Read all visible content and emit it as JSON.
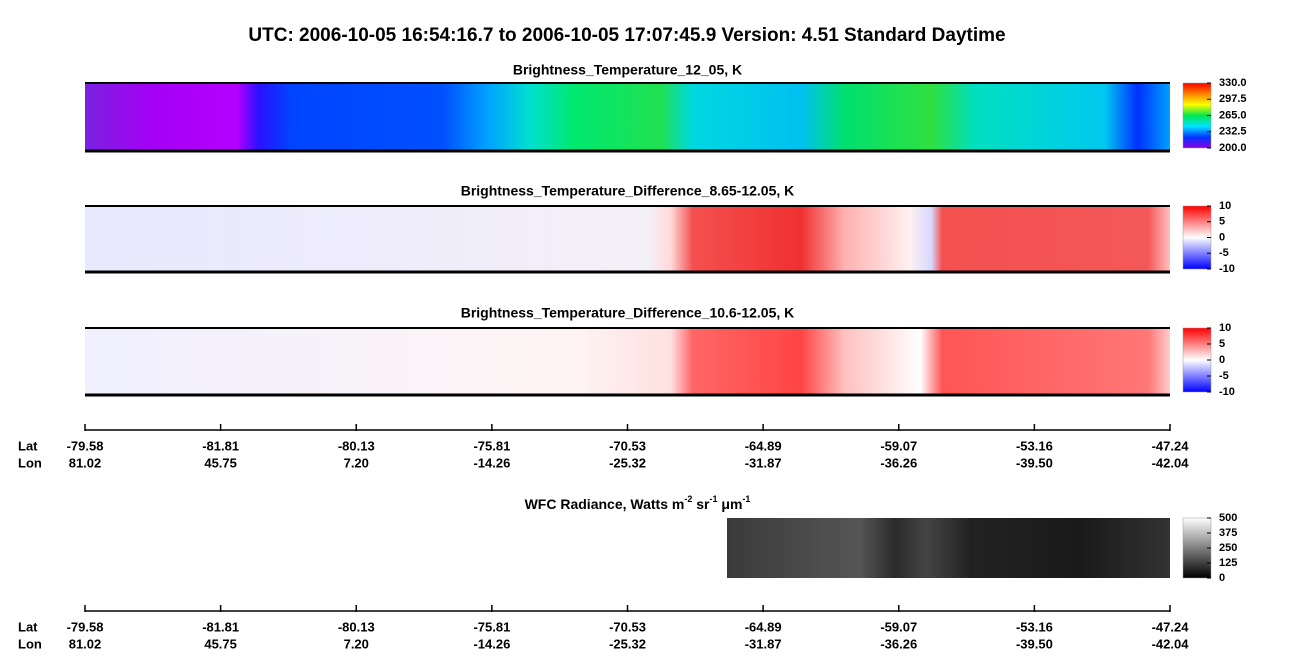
{
  "title": "UTC:  2006-10-05   16:54:16.7  to  2006-10-05   17:07:45.9    Version: 4.51  Standard Daytime",
  "chart_data": [
    {
      "type": "heatmap",
      "title": "Brightness_Temperature_12_05, K",
      "colormap": [
        "#8a00e6",
        "#0033ff",
        "#00e5ff",
        "#00e64d",
        "#ffff00",
        "#ff8000",
        "#ff0000"
      ],
      "zlim": [
        200,
        330
      ],
      "zticks": [
        {
          "value": 200,
          "label": "200.0"
        },
        {
          "value": 232.5,
          "label": "232.5"
        },
        {
          "value": 265,
          "label": "265.0"
        },
        {
          "value": 297.5,
          "label": "297.5"
        },
        {
          "value": 330,
          "label": "330.0"
        }
      ]
    },
    {
      "type": "heatmap",
      "title": "Brightness_Temperature_Difference_8.65-12.05, K",
      "colormap": [
        "#0000ff",
        "#ffffff",
        "#ff0000"
      ],
      "zlim": [
        -10,
        10
      ],
      "zticks": [
        -10,
        -5,
        0,
        5,
        10
      ]
    },
    {
      "type": "heatmap",
      "title": "Brightness_Temperature_Difference_10.6-12.05, K",
      "colormap": [
        "#0000ff",
        "#ffffff",
        "#ff0000"
      ],
      "zlim": [
        -10,
        10
      ],
      "zticks": [
        -10,
        -5,
        0,
        5,
        10
      ]
    },
    {
      "type": "track-axis",
      "row_labels": [
        "Lat",
        "Lon"
      ],
      "lat": [
        "-79.58",
        "-81.81",
        "-80.13",
        "-75.81",
        "-70.53",
        "-64.89",
        "-59.07",
        "-53.16",
        "-47.24"
      ],
      "lon": [
        "81.02",
        "45.75",
        "7.20",
        "-14.26",
        "-25.32",
        "-31.87",
        "-36.26",
        "-39.50",
        "-42.04"
      ]
    },
    {
      "type": "heatmap",
      "title": [
        "WFC Radiance, Watts m",
        "-2",
        " sr",
        "-1",
        " μm",
        "-1"
      ],
      "colormap": [
        "#000000",
        "#ffffff"
      ],
      "zlim": [
        0,
        500
      ],
      "zticks": [
        0,
        125,
        250,
        375,
        500
      ]
    },
    {
      "type": "track-axis",
      "row_labels": [
        "Lat",
        "Lon"
      ],
      "lat": [
        "-79.58",
        "-81.81",
        "-80.13",
        "-75.81",
        "-70.53",
        "-64.89",
        "-59.07",
        "-53.16",
        "-47.24"
      ],
      "lon": [
        "81.02",
        "45.75",
        "7.20",
        "-14.26",
        "-25.32",
        "-31.87",
        "-36.26",
        "-39.50",
        "-42.04"
      ]
    }
  ]
}
